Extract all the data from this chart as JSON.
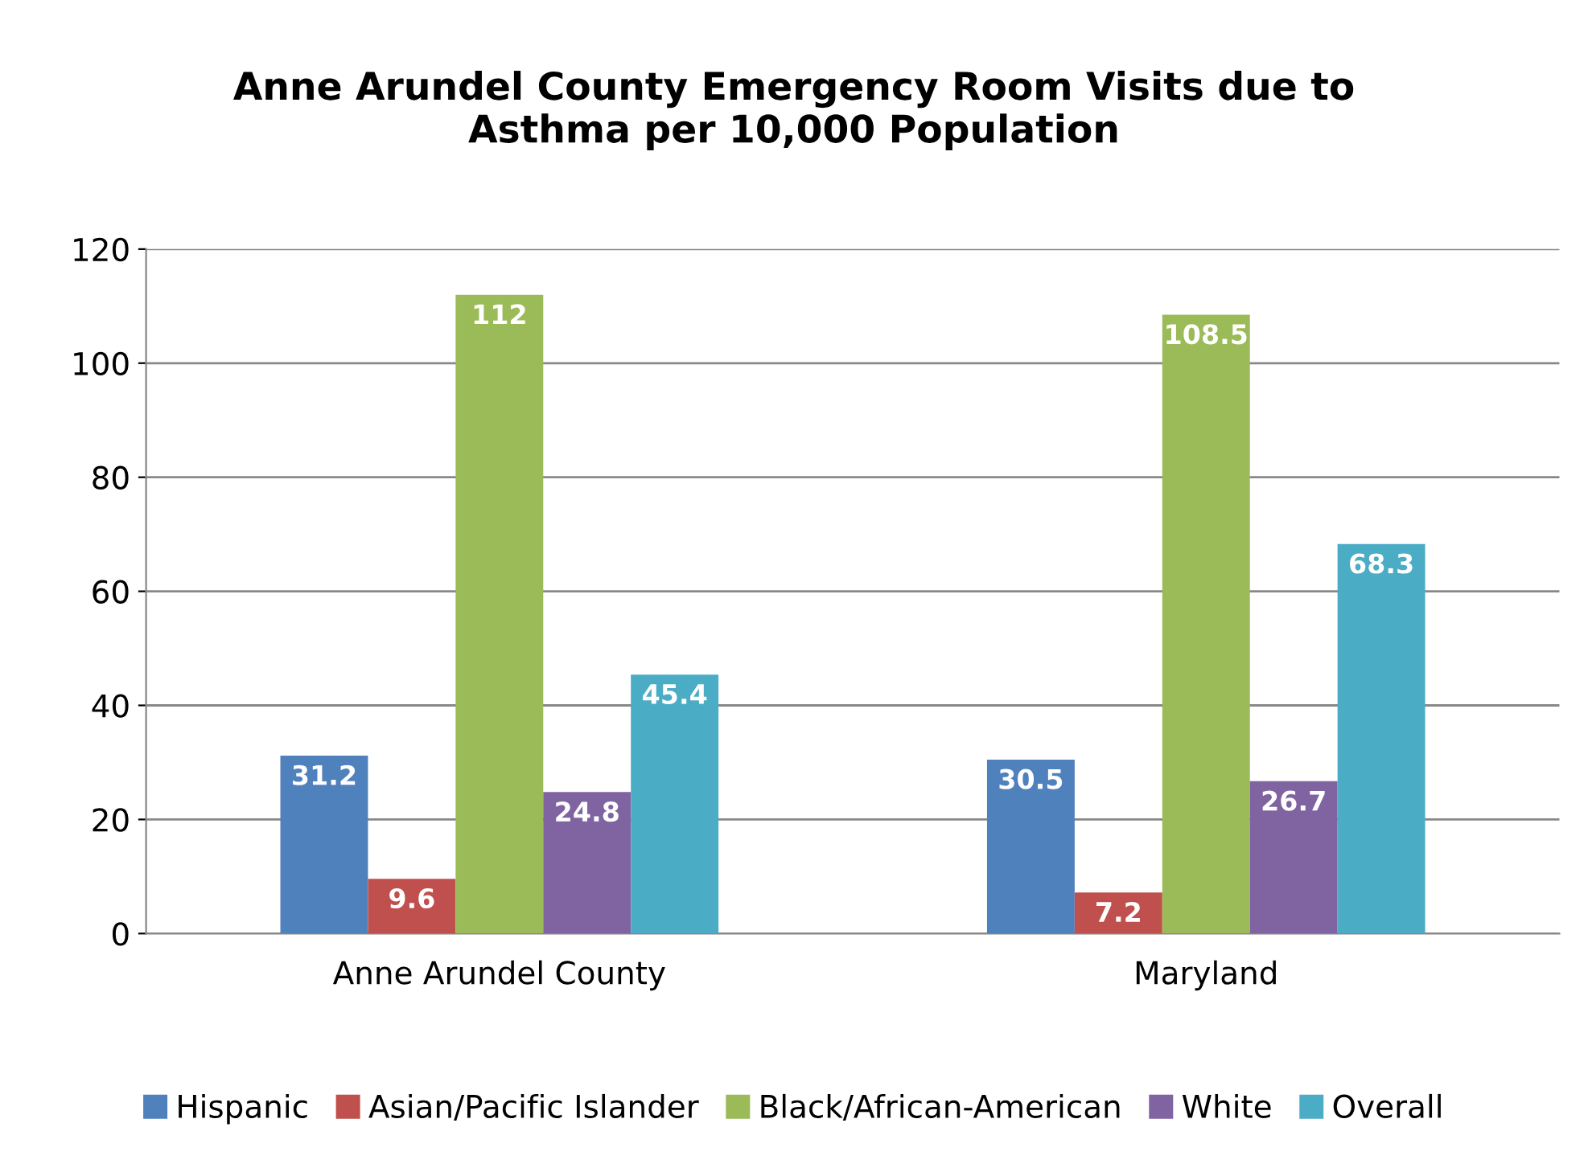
{
  "chart_data": {
    "type": "bar",
    "title": "Anne Arundel County Emergency Room Visits due to\nAsthma per 10,000 Population",
    "categories": [
      "Anne Arundel County",
      "Maryland"
    ],
    "series": [
      {
        "name": "Hispanic",
        "color": "#4f81bd",
        "values": [
          31.2,
          30.5
        ]
      },
      {
        "name": "Asian/Pacific Islander",
        "color": "#c0504d",
        "values": [
          9.6,
          7.2
        ]
      },
      {
        "name": "Black/African-American",
        "color": "#9bbb59",
        "values": [
          112,
          108.5
        ]
      },
      {
        "name": "White",
        "color": "#8064a2",
        "values": [
          24.8,
          26.7
        ]
      },
      {
        "name": "Overall",
        "color": "#4bacc6",
        "values": [
          45.4,
          68.3
        ]
      }
    ],
    "ylim": [
      0,
      120
    ],
    "yticks": [
      0,
      20,
      40,
      60,
      80,
      100,
      120
    ],
    "grid": "y",
    "legend": "bottom",
    "data_labels": true
  }
}
